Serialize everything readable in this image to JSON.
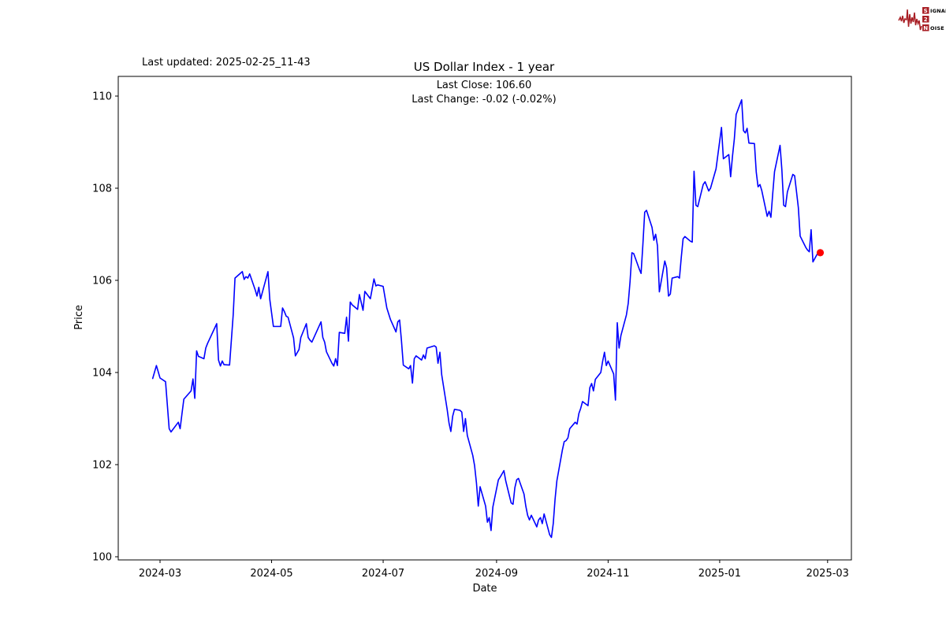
{
  "header": {
    "last_updated": "Last updated: 2025-02-25_11-43",
    "title": "US Dollar Index - 1 year",
    "last_close_label": "Last Close: 106.60",
    "last_change_label": "Last Change: -0.02 (-0.02%)"
  },
  "logo": {
    "box1": "S",
    "rest1": "IGNAL",
    "box2": "2",
    "box3": "N",
    "rest3": "OISE",
    "color": "#A81E24"
  },
  "chart_data": {
    "type": "line",
    "title": "US Dollar Index - 1 year",
    "xlabel": "Date",
    "ylabel": "Price",
    "ylim": [
      99.9,
      110.4
    ],
    "y_ticks": [
      100,
      102,
      104,
      106,
      108,
      110
    ],
    "x_ticks": [
      {
        "label": "2024-03",
        "date": "2024-03-01"
      },
      {
        "label": "2024-05",
        "date": "2024-05-01"
      },
      {
        "label": "2024-07",
        "date": "2024-07-01"
      },
      {
        "label": "2024-09",
        "date": "2024-09-01"
      },
      {
        "label": "2024-11",
        "date": "2024-11-01"
      },
      {
        "label": "2025-01",
        "date": "2025-01-01"
      },
      {
        "label": "2025-03",
        "date": "2025-03-01"
      }
    ],
    "grid": false,
    "legend": null,
    "line_color": "#0000FF",
    "marker_color": "#FF0000",
    "last_close": 106.6,
    "last_change": -0.02,
    "last_change_pct": "-0.02%",
    "series": [
      {
        "points": [
          [
            "2024-02-26",
            103.87
          ],
          [
            "2024-02-28",
            104.15
          ],
          [
            "2024-03-01",
            103.88
          ],
          [
            "2024-03-04",
            103.8
          ],
          [
            "2024-03-06",
            102.78
          ],
          [
            "2024-03-07",
            102.71
          ],
          [
            "2024-03-11",
            102.92
          ],
          [
            "2024-03-12",
            102.78
          ],
          [
            "2024-03-13",
            103.1
          ],
          [
            "2024-03-14",
            103.42
          ],
          [
            "2024-03-18",
            103.6
          ],
          [
            "2024-03-19",
            103.86
          ],
          [
            "2024-03-20",
            103.44
          ],
          [
            "2024-03-21",
            104.47
          ],
          [
            "2024-03-22",
            104.35
          ],
          [
            "2024-03-25",
            104.3
          ],
          [
            "2024-03-26",
            104.53
          ],
          [
            "2024-03-27",
            104.63
          ],
          [
            "2024-04-01",
            105.06
          ],
          [
            "2024-04-02",
            104.27
          ],
          [
            "2024-04-03",
            104.14
          ],
          [
            "2024-04-04",
            104.25
          ],
          [
            "2024-04-05",
            104.17
          ],
          [
            "2024-04-08",
            104.16
          ],
          [
            "2024-04-10",
            105.25
          ],
          [
            "2024-04-11",
            106.05
          ],
          [
            "2024-04-15",
            106.19
          ],
          [
            "2024-04-16",
            106.02
          ],
          [
            "2024-04-17",
            106.08
          ],
          [
            "2024-04-18",
            106.05
          ],
          [
            "2024-04-19",
            106.14
          ],
          [
            "2024-04-22",
            105.8
          ],
          [
            "2024-04-23",
            105.66
          ],
          [
            "2024-04-24",
            105.85
          ],
          [
            "2024-04-25",
            105.6
          ],
          [
            "2024-04-29",
            106.19
          ],
          [
            "2024-04-30",
            105.59
          ],
          [
            "2024-05-02",
            105.0
          ],
          [
            "2024-05-06",
            105.0
          ],
          [
            "2024-05-07",
            105.4
          ],
          [
            "2024-05-08",
            105.32
          ],
          [
            "2024-05-09",
            105.22
          ],
          [
            "2024-05-10",
            105.2
          ],
          [
            "2024-05-13",
            104.75
          ],
          [
            "2024-05-14",
            104.36
          ],
          [
            "2024-05-16",
            104.5
          ],
          [
            "2024-05-17",
            104.76
          ],
          [
            "2024-05-20",
            105.06
          ],
          [
            "2024-05-21",
            104.76
          ],
          [
            "2024-05-22",
            104.7
          ],
          [
            "2024-05-23",
            104.66
          ],
          [
            "2024-05-28",
            105.1
          ],
          [
            "2024-05-29",
            104.76
          ],
          [
            "2024-05-30",
            104.66
          ],
          [
            "2024-05-31",
            104.45
          ],
          [
            "2024-06-03",
            104.2
          ],
          [
            "2024-06-04",
            104.14
          ],
          [
            "2024-06-05",
            104.3
          ],
          [
            "2024-06-06",
            104.15
          ],
          [
            "2024-06-07",
            104.87
          ],
          [
            "2024-06-10",
            104.85
          ],
          [
            "2024-06-11",
            105.2
          ],
          [
            "2024-06-12",
            104.68
          ],
          [
            "2024-06-13",
            105.53
          ],
          [
            "2024-06-14",
            105.47
          ],
          [
            "2024-06-17",
            105.37
          ],
          [
            "2024-06-18",
            105.69
          ],
          [
            "2024-06-20",
            105.35
          ],
          [
            "2024-06-21",
            105.76
          ],
          [
            "2024-06-24",
            105.6
          ],
          [
            "2024-06-26",
            106.03
          ],
          [
            "2024-06-27",
            105.88
          ],
          [
            "2024-06-28",
            105.9
          ],
          [
            "2024-07-01",
            105.87
          ],
          [
            "2024-07-03",
            105.4
          ],
          [
            "2024-07-05",
            105.15
          ],
          [
            "2024-07-08",
            104.88
          ],
          [
            "2024-07-09",
            105.1
          ],
          [
            "2024-07-10",
            105.14
          ],
          [
            "2024-07-11",
            104.7
          ],
          [
            "2024-07-12",
            104.16
          ],
          [
            "2024-07-15",
            104.08
          ],
          [
            "2024-07-16",
            104.15
          ],
          [
            "2024-07-17",
            103.77
          ],
          [
            "2024-07-18",
            104.3
          ],
          [
            "2024-07-19",
            104.36
          ],
          [
            "2024-07-22",
            104.27
          ],
          [
            "2024-07-23",
            104.38
          ],
          [
            "2024-07-24",
            104.3
          ],
          [
            "2024-07-25",
            104.53
          ],
          [
            "2024-07-29",
            104.58
          ],
          [
            "2024-07-30",
            104.55
          ],
          [
            "2024-07-31",
            104.2
          ],
          [
            "2024-08-01",
            104.44
          ],
          [
            "2024-08-02",
            103.95
          ],
          [
            "2024-08-05",
            103.2
          ],
          [
            "2024-08-06",
            102.9
          ],
          [
            "2024-08-07",
            102.72
          ],
          [
            "2024-08-08",
            103.05
          ],
          [
            "2024-08-09",
            103.2
          ],
          [
            "2024-08-12",
            103.18
          ],
          [
            "2024-08-13",
            103.14
          ],
          [
            "2024-08-14",
            102.72
          ],
          [
            "2024-08-15",
            103.0
          ],
          [
            "2024-08-16",
            102.63
          ],
          [
            "2024-08-19",
            102.2
          ],
          [
            "2024-08-20",
            101.98
          ],
          [
            "2024-08-21",
            101.6
          ],
          [
            "2024-08-22",
            101.1
          ],
          [
            "2024-08-23",
            101.52
          ],
          [
            "2024-08-26",
            101.1
          ],
          [
            "2024-08-27",
            100.75
          ],
          [
            "2024-08-28",
            100.85
          ],
          [
            "2024-08-29",
            100.57
          ],
          [
            "2024-08-30",
            101.08
          ],
          [
            "2024-09-02",
            101.67
          ],
          [
            "2024-09-03",
            101.73
          ],
          [
            "2024-09-05",
            101.87
          ],
          [
            "2024-09-06",
            101.65
          ],
          [
            "2024-09-09",
            101.17
          ],
          [
            "2024-09-10",
            101.14
          ],
          [
            "2024-09-11",
            101.5
          ],
          [
            "2024-09-12",
            101.67
          ],
          [
            "2024-09-13",
            101.7
          ],
          [
            "2024-09-16",
            101.36
          ],
          [
            "2024-09-17",
            101.1
          ],
          [
            "2024-09-18",
            100.9
          ],
          [
            "2024-09-19",
            100.8
          ],
          [
            "2024-09-20",
            100.9
          ],
          [
            "2024-09-23",
            100.65
          ],
          [
            "2024-09-24",
            100.8
          ],
          [
            "2024-09-25",
            100.85
          ],
          [
            "2024-09-26",
            100.72
          ],
          [
            "2024-09-27",
            100.93
          ],
          [
            "2024-09-30",
            100.48
          ],
          [
            "2024-10-01",
            100.42
          ],
          [
            "2024-10-02",
            100.72
          ],
          [
            "2024-10-03",
            101.25
          ],
          [
            "2024-10-04",
            101.65
          ],
          [
            "2024-10-07",
            102.32
          ],
          [
            "2024-10-08",
            102.5
          ],
          [
            "2024-10-09",
            102.52
          ],
          [
            "2024-10-10",
            102.58
          ],
          [
            "2024-10-11",
            102.78
          ],
          [
            "2024-10-14",
            102.92
          ],
          [
            "2024-10-15",
            102.88
          ],
          [
            "2024-10-16",
            103.11
          ],
          [
            "2024-10-17",
            103.22
          ],
          [
            "2024-10-18",
            103.37
          ],
          [
            "2024-10-21",
            103.28
          ],
          [
            "2024-10-22",
            103.67
          ],
          [
            "2024-10-23",
            103.76
          ],
          [
            "2024-10-24",
            103.6
          ],
          [
            "2024-10-25",
            103.85
          ],
          [
            "2024-10-28",
            104.0
          ],
          [
            "2024-10-29",
            104.24
          ],
          [
            "2024-10-30",
            104.44
          ],
          [
            "2024-10-31",
            104.15
          ],
          [
            "2024-11-01",
            104.25
          ],
          [
            "2024-11-04",
            103.97
          ],
          [
            "2024-11-05",
            103.4
          ],
          [
            "2024-11-06",
            105.08
          ],
          [
            "2024-11-07",
            104.53
          ],
          [
            "2024-11-08",
            104.8
          ],
          [
            "2024-11-11",
            105.25
          ],
          [
            "2024-11-12",
            105.5
          ],
          [
            "2024-11-13",
            105.97
          ],
          [
            "2024-11-14",
            106.6
          ],
          [
            "2024-11-15",
            106.58
          ],
          [
            "2024-11-18",
            106.25
          ],
          [
            "2024-11-19",
            106.15
          ],
          [
            "2024-11-20",
            106.78
          ],
          [
            "2024-11-21",
            107.48
          ],
          [
            "2024-11-22",
            107.52
          ],
          [
            "2024-11-25",
            107.15
          ],
          [
            "2024-11-26",
            106.87
          ],
          [
            "2024-11-27",
            107.0
          ],
          [
            "2024-11-28",
            106.75
          ],
          [
            "2024-11-29",
            105.75
          ],
          [
            "2024-12-02",
            106.42
          ],
          [
            "2024-12-03",
            106.27
          ],
          [
            "2024-12-04",
            105.66
          ],
          [
            "2024-12-05",
            105.7
          ],
          [
            "2024-12-06",
            106.05
          ],
          [
            "2024-12-09",
            106.08
          ],
          [
            "2024-12-10",
            106.05
          ],
          [
            "2024-12-11",
            106.5
          ],
          [
            "2024-12-12",
            106.9
          ],
          [
            "2024-12-13",
            106.95
          ],
          [
            "2024-12-16",
            106.85
          ],
          [
            "2024-12-17",
            106.83
          ],
          [
            "2024-12-18",
            108.37
          ],
          [
            "2024-12-19",
            107.63
          ],
          [
            "2024-12-20",
            107.6
          ],
          [
            "2024-12-23",
            108.08
          ],
          [
            "2024-12-24",
            108.14
          ],
          [
            "2024-12-26",
            107.94
          ],
          [
            "2024-12-27",
            108.0
          ],
          [
            "2024-12-30",
            108.42
          ],
          [
            "2025-01-02",
            109.32
          ],
          [
            "2025-01-03",
            108.64
          ],
          [
            "2025-01-06",
            108.73
          ],
          [
            "2025-01-07",
            108.25
          ],
          [
            "2025-01-08",
            108.7
          ],
          [
            "2025-01-09",
            109.07
          ],
          [
            "2025-01-10",
            109.6
          ],
          [
            "2025-01-13",
            109.92
          ],
          [
            "2025-01-14",
            109.25
          ],
          [
            "2025-01-15",
            109.2
          ],
          [
            "2025-01-16",
            109.3
          ],
          [
            "2025-01-17",
            108.98
          ],
          [
            "2025-01-20",
            108.97
          ],
          [
            "2025-01-21",
            108.35
          ],
          [
            "2025-01-22",
            108.03
          ],
          [
            "2025-01-23",
            108.08
          ],
          [
            "2025-01-24",
            107.95
          ],
          [
            "2025-01-27",
            107.39
          ],
          [
            "2025-01-28",
            107.5
          ],
          [
            "2025-01-29",
            107.37
          ],
          [
            "2025-01-30",
            107.88
          ],
          [
            "2025-01-31",
            108.36
          ],
          [
            "2025-02-03",
            108.93
          ],
          [
            "2025-02-04",
            108.4
          ],
          [
            "2025-02-05",
            107.63
          ],
          [
            "2025-02-06",
            107.6
          ],
          [
            "2025-02-07",
            107.92
          ],
          [
            "2025-02-10",
            108.3
          ],
          [
            "2025-02-11",
            108.27
          ],
          [
            "2025-02-12",
            107.92
          ],
          [
            "2025-02-13",
            107.58
          ],
          [
            "2025-02-14",
            106.96
          ],
          [
            "2025-02-17",
            106.72
          ],
          [
            "2025-02-18",
            106.66
          ],
          [
            "2025-02-19",
            106.62
          ],
          [
            "2025-02-20",
            107.1
          ],
          [
            "2025-02-21",
            106.4
          ],
          [
            "2025-02-24",
            106.62
          ],
          [
            "2025-02-25",
            106.6
          ]
        ]
      }
    ]
  }
}
